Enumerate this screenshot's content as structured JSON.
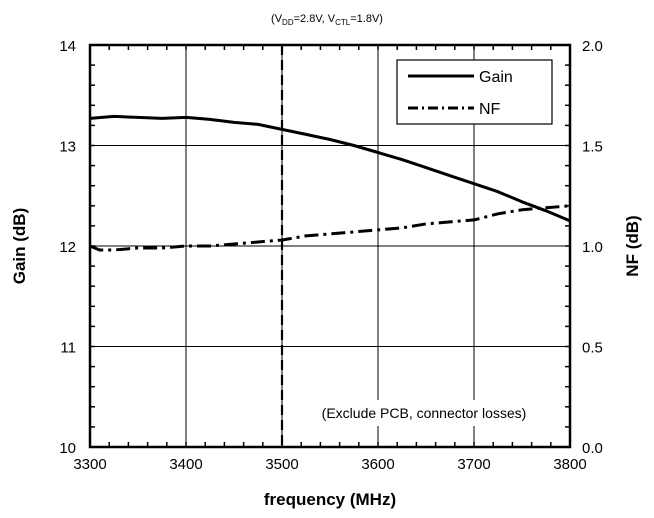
{
  "chart_data": {
    "type": "line",
    "title_parts": {
      "p1": "(V",
      "s1": "DD",
      "p2": "=2.8V, V",
      "s2": "CTL",
      "p3": "=1.8V)"
    },
    "xlabel": "frequency (MHz)",
    "ylabel": "Gain (dB)",
    "y2label": "NF (dB)",
    "xlim": [
      3300,
      3800
    ],
    "ylim": [
      10,
      14
    ],
    "y2lim": [
      0.0,
      2.0
    ],
    "x_ticks": [
      "3300",
      "3400",
      "3500",
      "3600",
      "3700",
      "3800"
    ],
    "y_ticks": [
      "10",
      "11",
      "12",
      "13",
      "14"
    ],
    "y2_ticks": [
      "0.0",
      "0.5",
      "1.0",
      "1.5",
      "2.0"
    ],
    "grid": true,
    "legend_position": "top-right",
    "marker_line": {
      "x": 3500,
      "style": "dashed"
    },
    "annotation": "(Exclude PCB, connector losses)",
    "series": [
      {
        "name": "Gain",
        "axis": "left",
        "style": "solid",
        "x": [
          3300,
          3325,
          3350,
          3375,
          3400,
          3425,
          3450,
          3475,
          3500,
          3525,
          3550,
          3575,
          3600,
          3625,
          3650,
          3675,
          3700,
          3725,
          3750,
          3775,
          3800
        ],
        "y": [
          13.27,
          13.29,
          13.28,
          13.27,
          13.28,
          13.26,
          13.23,
          13.21,
          13.16,
          13.11,
          13.06,
          13.0,
          12.93,
          12.86,
          12.78,
          12.7,
          12.62,
          12.54,
          12.44,
          12.35,
          12.25
        ]
      },
      {
        "name": "NF",
        "axis": "right",
        "style": "dash-dot",
        "x": [
          3300,
          3310,
          3325,
          3350,
          3375,
          3400,
          3425,
          3450,
          3475,
          3500,
          3525,
          3550,
          3575,
          3600,
          3625,
          3650,
          3675,
          3700,
          3725,
          3750,
          3775,
          3800
        ],
        "y": [
          1.0,
          0.98,
          0.98,
          0.99,
          0.99,
          1.0,
          1.0,
          1.01,
          1.02,
          1.03,
          1.05,
          1.06,
          1.07,
          1.08,
          1.09,
          1.11,
          1.12,
          1.13,
          1.16,
          1.18,
          1.19,
          1.2
        ]
      }
    ]
  }
}
